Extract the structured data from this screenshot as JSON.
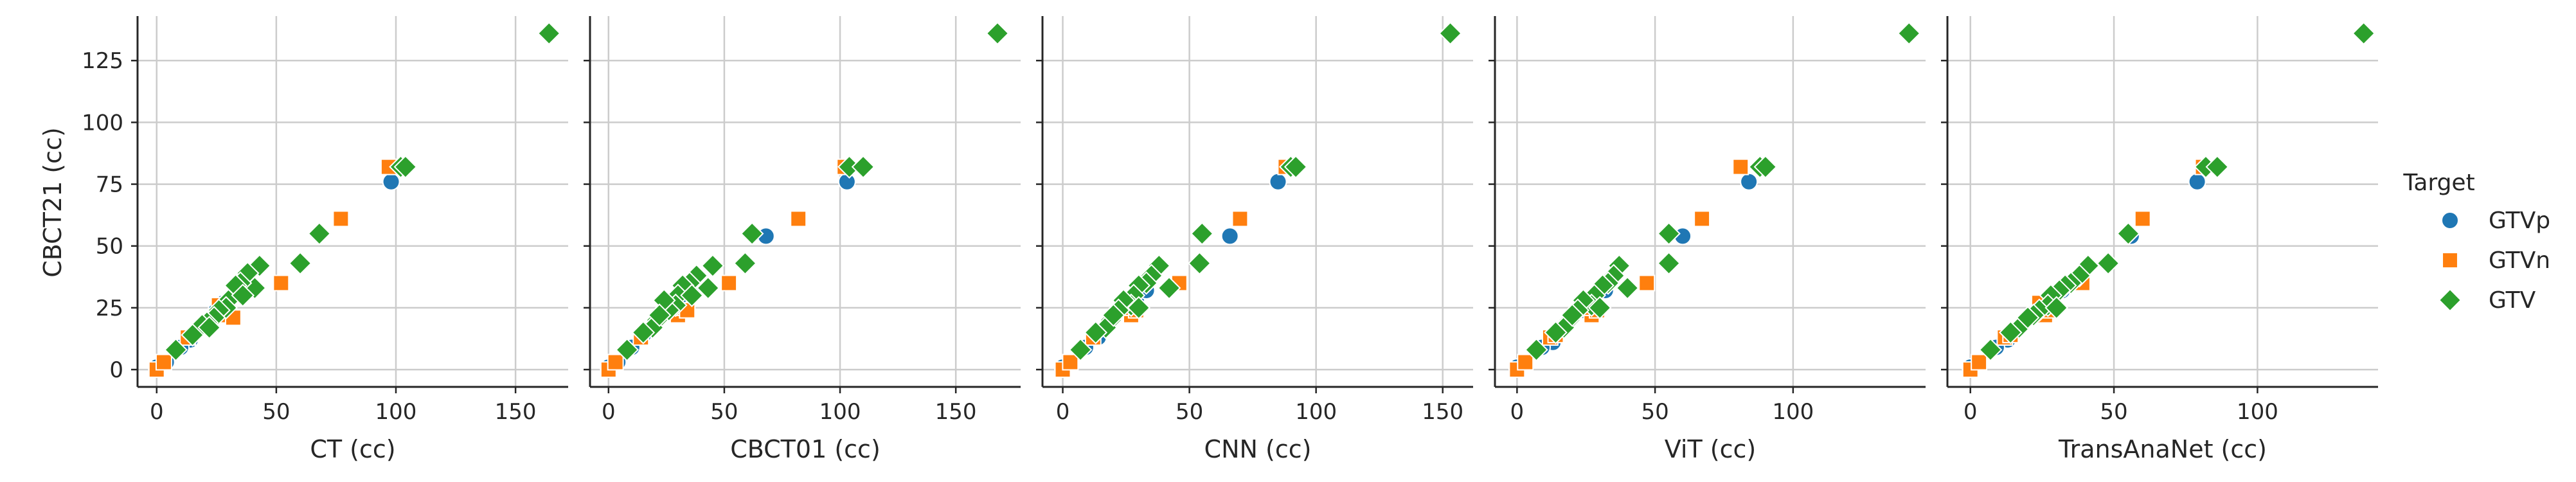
{
  "chart_data": {
    "type": "scatter",
    "layout": "faceted",
    "shared_y": true,
    "ylabel": "CBCT21 (cc)",
    "ylim": [
      -7,
      143
    ],
    "yticks": [
      0,
      25,
      50,
      75,
      100,
      125
    ],
    "grid": true,
    "legend": {
      "title": "Target",
      "position": "right",
      "entries": [
        {
          "name": "GTVp",
          "color": "#1f77b4",
          "marker": "circle"
        },
        {
          "name": "GTVn",
          "color": "#ff7f0e",
          "marker": "square"
        },
        {
          "name": "GTV",
          "color": "#2ca02c",
          "marker": "diamond"
        }
      ]
    },
    "panels": [
      {
        "xlabel": "CT (cc)",
        "xlim": [
          -8,
          172
        ],
        "xticks": [
          0,
          50,
          100,
          150
        ],
        "series": [
          {
            "name": "GTVp",
            "points": [
              [
                98,
                76
              ],
              [
                33,
                32
              ],
              [
                28,
                27
              ],
              [
                14,
                12
              ],
              [
                10,
                9
              ],
              [
                30,
                28
              ],
              [
                25,
                24
              ],
              [
                4,
                3
              ],
              [
                0,
                1
              ]
            ]
          },
          {
            "name": "GTVn",
            "points": [
              [
                97,
                82
              ],
              [
                77,
                61
              ],
              [
                52,
                35
              ],
              [
                13,
                13
              ],
              [
                30,
                22
              ],
              [
                28,
                25
              ],
              [
                32,
                21
              ],
              [
                38,
                34
              ],
              [
                0,
                0
              ],
              [
                3,
                3
              ],
              [
                26,
                26
              ]
            ]
          },
          {
            "name": "GTV",
            "points": [
              [
                164,
                136
              ],
              [
                102,
                82
              ],
              [
                104,
                82
              ],
              [
                68,
                55
              ],
              [
                60,
                43
              ],
              [
                43,
                42
              ],
              [
                41,
                33
              ],
              [
                38,
                39
              ],
              [
                35,
                35
              ],
              [
                33,
                34
              ],
              [
                30,
                28
              ],
              [
                29,
                25
              ],
              [
                26,
                24
              ],
              [
                24,
                21
              ],
              [
                21,
                19
              ],
              [
                19,
                18
              ],
              [
                15,
                14
              ],
              [
                8,
                8
              ],
              [
                22,
                17
              ],
              [
                36,
                30
              ]
            ]
          }
        ]
      },
      {
        "xlabel": "CBCT01 (cc)",
        "xlim": [
          -8,
          178
        ],
        "xticks": [
          0,
          50,
          100,
          150
        ],
        "series": [
          {
            "name": "GTVp",
            "points": [
              [
                103,
                76
              ],
              [
                68,
                54
              ],
              [
                30,
                28
              ],
              [
                25,
                24
              ],
              [
                15,
                14
              ],
              [
                10,
                9
              ],
              [
                4,
                3
              ],
              [
                0,
                1
              ],
              [
                36,
                33
              ]
            ]
          },
          {
            "name": "GTVn",
            "points": [
              [
                102,
                82
              ],
              [
                82,
                61
              ],
              [
                52,
                35
              ],
              [
                14,
                13
              ],
              [
                30,
                22
              ],
              [
                28,
                25
              ],
              [
                34,
                24
              ],
              [
                0,
                0
              ],
              [
                3,
                3
              ],
              [
                26,
                27
              ]
            ]
          },
          {
            "name": "GTV",
            "points": [
              [
                168,
                136
              ],
              [
                104,
                82
              ],
              [
                110,
                82
              ],
              [
                62,
                55
              ],
              [
                59,
                43
              ],
              [
                45,
                42
              ],
              [
                43,
                33
              ],
              [
                38,
                38
              ],
              [
                35,
                35
              ],
              [
                32,
                34
              ],
              [
                30,
                30
              ],
              [
                29,
                26
              ],
              [
                26,
                24
              ],
              [
                24,
                28
              ],
              [
                21,
                20
              ],
              [
                19,
                17
              ],
              [
                15,
                15
              ],
              [
                8,
                8
              ],
              [
                22,
                22
              ],
              [
                36,
                30
              ]
            ]
          }
        ]
      },
      {
        "xlabel": "CNN (cc)",
        "xlim": [
          -8,
          162
        ],
        "xticks": [
          0,
          50,
          100,
          150
        ],
        "series": [
          {
            "name": "GTVp",
            "points": [
              [
                85,
                76
              ],
              [
                66,
                54
              ],
              [
                29,
                28
              ],
              [
                24,
                24
              ],
              [
                14,
                13
              ],
              [
                9,
                9
              ],
              [
                3,
                3
              ],
              [
                0,
                1
              ],
              [
                33,
                32
              ]
            ]
          },
          {
            "name": "GTVn",
            "points": [
              [
                88,
                82
              ],
              [
                70,
                61
              ],
              [
                46,
                35
              ],
              [
                12,
                13
              ],
              [
                27,
                22
              ],
              [
                25,
                25
              ],
              [
                29,
                24
              ],
              [
                0,
                0
              ],
              [
                3,
                3
              ],
              [
                24,
                27
              ]
            ]
          },
          {
            "name": "GTV",
            "points": [
              [
                153,
                136
              ],
              [
                90,
                82
              ],
              [
                92,
                82
              ],
              [
                55,
                55
              ],
              [
                54,
                43
              ],
              [
                38,
                42
              ],
              [
                42,
                33
              ],
              [
                35,
                38
              ],
              [
                33,
                35
              ],
              [
                30,
                34
              ],
              [
                28,
                30
              ],
              [
                27,
                26
              ],
              [
                24,
                28
              ],
              [
                22,
                24
              ],
              [
                19,
                20
              ],
              [
                17,
                17
              ],
              [
                13,
                15
              ],
              [
                7,
                8
              ],
              [
                20,
                22
              ],
              [
                30,
                25
              ]
            ]
          }
        ]
      },
      {
        "xlabel": "ViT (cc)",
        "xlim": [
          -8,
          148
        ],
        "xticks": [
          0,
          50,
          100
        ],
        "series": [
          {
            "name": "GTVp",
            "points": [
              [
                84,
                76
              ],
              [
                60,
                54
              ],
              [
                28,
                28
              ],
              [
                24,
                24
              ],
              [
                13,
                11
              ],
              [
                9,
                9
              ],
              [
                3,
                3
              ],
              [
                0,
                1
              ],
              [
                32,
                32
              ]
            ]
          },
          {
            "name": "GTVn",
            "points": [
              [
                81,
                82
              ],
              [
                67,
                61
              ],
              [
                47,
                35
              ],
              [
                12,
                13
              ],
              [
                27,
                22
              ],
              [
                25,
                25
              ],
              [
                29,
                24
              ],
              [
                0,
                0
              ],
              [
                3,
                3
              ],
              [
                24,
                27
              ],
              [
                14,
                14
              ]
            ]
          },
          {
            "name": "GTV",
            "points": [
              [
                142,
                136
              ],
              [
                88,
                82
              ],
              [
                90,
                82
              ],
              [
                55,
                55
              ],
              [
                55,
                43
              ],
              [
                37,
                42
              ],
              [
                40,
                33
              ],
              [
                35,
                38
              ],
              [
                33,
                35
              ],
              [
                31,
                34
              ],
              [
                28,
                30
              ],
              [
                27,
                26
              ],
              [
                24,
                28
              ],
              [
                22,
                24
              ],
              [
                19,
                20
              ],
              [
                17,
                17
              ],
              [
                14,
                15
              ],
              [
                7,
                8
              ],
              [
                20,
                22
              ],
              [
                30,
                25
              ]
            ]
          }
        ]
      },
      {
        "xlabel": "TransAnaNet (cc)",
        "xlim": [
          -8,
          142
        ],
        "xticks": [
          0,
          50,
          100
        ],
        "series": [
          {
            "name": "GTVp",
            "points": [
              [
                79,
                76
              ],
              [
                56,
                54
              ],
              [
                28,
                28
              ],
              [
                24,
                24
              ],
              [
                13,
                12
              ],
              [
                9,
                9
              ],
              [
                3,
                3
              ],
              [
                0,
                1
              ],
              [
                32,
                32
              ]
            ]
          },
          {
            "name": "GTVn",
            "points": [
              [
                81,
                82
              ],
              [
                60,
                61
              ],
              [
                39,
                35
              ],
              [
                12,
                13
              ],
              [
                26,
                22
              ],
              [
                25,
                25
              ],
              [
                28,
                24
              ],
              [
                0,
                0
              ],
              [
                3,
                3
              ],
              [
                24,
                27
              ],
              [
                14,
                14
              ]
            ]
          },
          {
            "name": "GTV",
            "points": [
              [
                137,
                136
              ],
              [
                82,
                82
              ],
              [
                86,
                82
              ],
              [
                55,
                55
              ],
              [
                48,
                43
              ],
              [
                41,
                42
              ],
              [
                38,
                38
              ],
              [
                35,
                35
              ],
              [
                33,
                34
              ],
              [
                31,
                32
              ],
              [
                28,
                30
              ],
              [
                27,
                26
              ],
              [
                24,
                24
              ],
              [
                22,
                22
              ],
              [
                19,
                20
              ],
              [
                17,
                17
              ],
              [
                14,
                15
              ],
              [
                7,
                8
              ],
              [
                20,
                21
              ],
              [
                30,
                25
              ]
            ]
          }
        ]
      }
    ]
  }
}
